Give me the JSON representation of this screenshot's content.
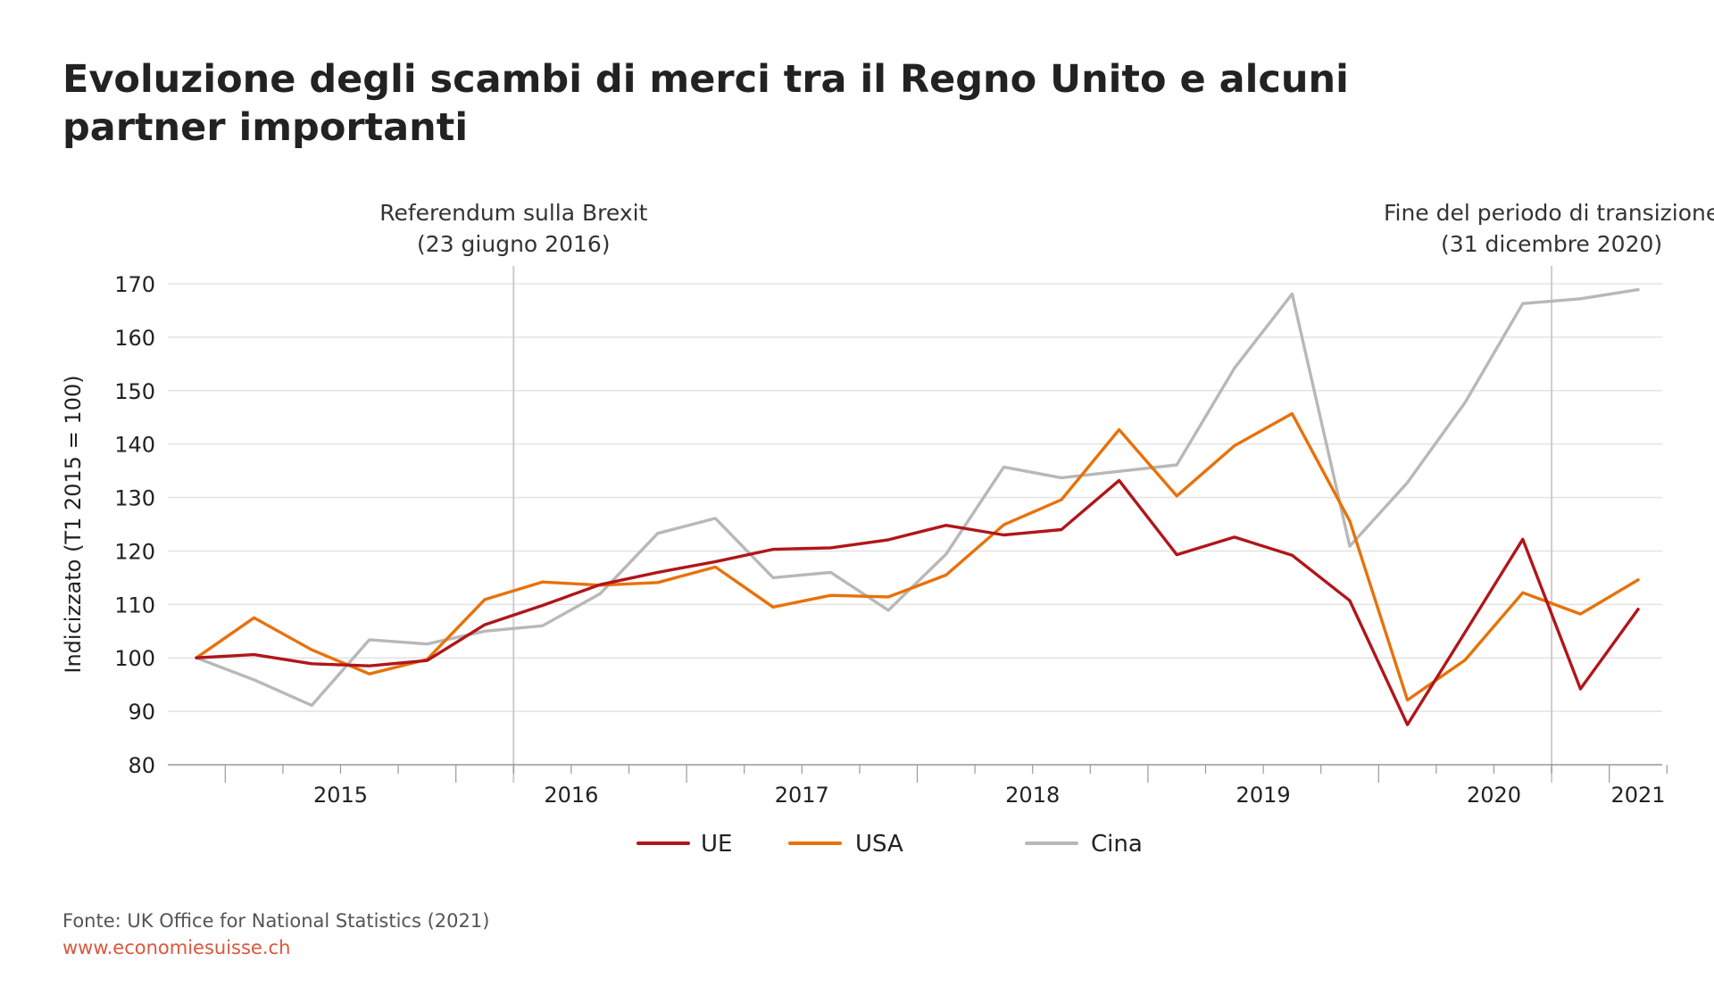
{
  "title": "Evoluzione degli scambi di merci tra il Regno Unito e alcuni partner importanti",
  "source": "Fonte: UK Office for National Statistics (2021)",
  "website": "www.economiesuisse.ch",
  "colors": {
    "UE": "#b0161a",
    "USA": "#e8710a",
    "Cina": "#b8b8b8",
    "grid": "#e3e3e3",
    "axis": "#999999",
    "event_line": "#cccccc"
  },
  "chart_data": {
    "type": "line",
    "ylabel": "Indicizzato (T1 2015 = 100)",
    "xlabel": "",
    "ylim": [
      80,
      170
    ],
    "yticks": [
      80,
      90,
      100,
      110,
      120,
      130,
      140,
      150,
      160,
      170
    ],
    "grid": "horizontal",
    "legend_position": "bottom",
    "x": [
      "2014 T4",
      "2015 T1",
      "2015 T2",
      "2015 T3",
      "2015 T4",
      "2016 T1",
      "2016 T2",
      "2016 T3",
      "2016 T4",
      "2017 T1",
      "2017 T2",
      "2017 T3",
      "2017 T4",
      "2018 T1",
      "2018 T2",
      "2018 T3",
      "2018 T4",
      "2019 T1",
      "2019 T2",
      "2019 T3",
      "2019 T4",
      "2020 T1",
      "2020 T2",
      "2020 T3",
      "2020 T4",
      "2021 T1"
    ],
    "year_labels": [
      "2015",
      "2016",
      "2017",
      "2018",
      "2019",
      "2020",
      "2021"
    ],
    "series": [
      {
        "name": "UE",
        "values": [
          100,
          100.6,
          98.9,
          98.5,
          99.5,
          106.2,
          109.8,
          113.7,
          116.0,
          118.0,
          120.3,
          120.6,
          122.1,
          124.8,
          123.0,
          124.0,
          133.2,
          119.3,
          122.6,
          119.2,
          110.7,
          87.5,
          104.8,
          122.2,
          94.2,
          109.1
        ]
      },
      {
        "name": "USA",
        "values": [
          100,
          107.5,
          101.5,
          97.0,
          99.7,
          110.9,
          114.2,
          113.6,
          114.1,
          117.0,
          109.5,
          111.7,
          111.4,
          115.5,
          124.9,
          129.6,
          142.7,
          130.3,
          139.7,
          145.7,
          125.6,
          92.1,
          99.6,
          112.2,
          108.2,
          114.6
        ]
      },
      {
        "name": "Cina",
        "values": [
          100,
          95.9,
          91.1,
          103.4,
          102.6,
          105.0,
          106.0,
          112.0,
          123.3,
          126.1,
          115.0,
          116.0,
          108.9,
          119.4,
          135.7,
          133.7,
          134.9,
          136.1,
          154.2,
          168.1,
          120.9,
          132.8,
          147.8,
          166.3,
          167.2,
          168.9
        ]
      }
    ],
    "annotations": [
      {
        "id": "brexit",
        "date": "2016-06-23",
        "x_index": 5.5,
        "line1": "Referendum sulla Brexit",
        "line2": "(23 giugno 2016)"
      },
      {
        "id": "transition",
        "date": "2020-12-31",
        "x_index": 23.5,
        "line1": "Fine del periodo di transizione",
        "line2": "(31 dicembre 2020)"
      }
    ]
  }
}
